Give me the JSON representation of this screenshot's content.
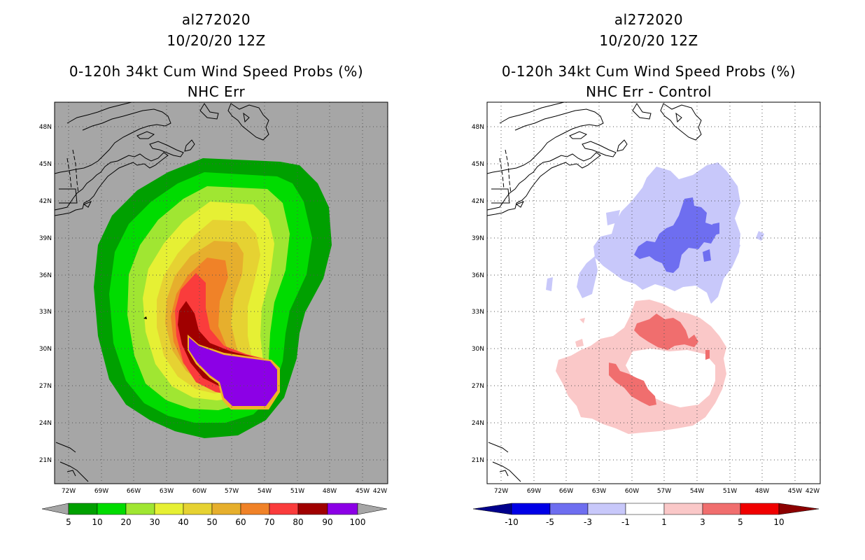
{
  "panels": [
    {
      "title_line1": "al272020",
      "title_line2": "10/20/20 12Z",
      "title_line3": "0-120h 34kt Cum Wind Speed Probs (%)",
      "title_line4": "NHC Err",
      "background_color": "#a6a6a6",
      "lat_labels": [
        "48N",
        "45N",
        "42N",
        "39N",
        "36N",
        "33N",
        "30N",
        "27N",
        "24N",
        "21N"
      ],
      "lon_labels": [
        "72W",
        "69W",
        "66W",
        "63W",
        "60W",
        "57W",
        "54W",
        "51W",
        "48W",
        "45W",
        "42W"
      ],
      "colorbar": {
        "colors": [
          "#00a000",
          "#00dc00",
          "#a0e632",
          "#e6f034",
          "#e6d232",
          "#e6af2d",
          "#f08228",
          "#fa3c3c",
          "#a00000",
          "#8c00e6"
        ],
        "under_color": "#a6a6a6",
        "over_color": "#a6a6a6",
        "labels": [
          "5",
          "10",
          "20",
          "30",
          "40",
          "50",
          "60",
          "70",
          "80",
          "90",
          "100"
        ]
      }
    },
    {
      "title_line1": "al272020",
      "title_line2": "10/20/20 12Z",
      "title_line3": "0-120h 34kt Cum Wind Speed Probs (%)",
      "title_line4": "NHC Err - Control",
      "background_color": "#ffffff",
      "lat_labels": [
        "48N",
        "45N",
        "42N",
        "39N",
        "36N",
        "33N",
        "30N",
        "27N",
        "24N",
        "21N"
      ],
      "lon_labels": [
        "72W",
        "69W",
        "66W",
        "63W",
        "60W",
        "57W",
        "54W",
        "51W",
        "48W",
        "45W",
        "42W"
      ],
      "colorbar": {
        "colors": [
          "#0000e6",
          "#6e6ef0",
          "#c8c8fa",
          "#ffffff",
          "#fac8c8",
          "#f06e6e",
          "#f00000"
        ],
        "under_color": "#00008c",
        "over_color": "#8c0000",
        "labels": [
          "-10",
          "-5",
          "-3",
          "-1",
          "1",
          "3",
          "5",
          "10"
        ]
      }
    }
  ]
}
